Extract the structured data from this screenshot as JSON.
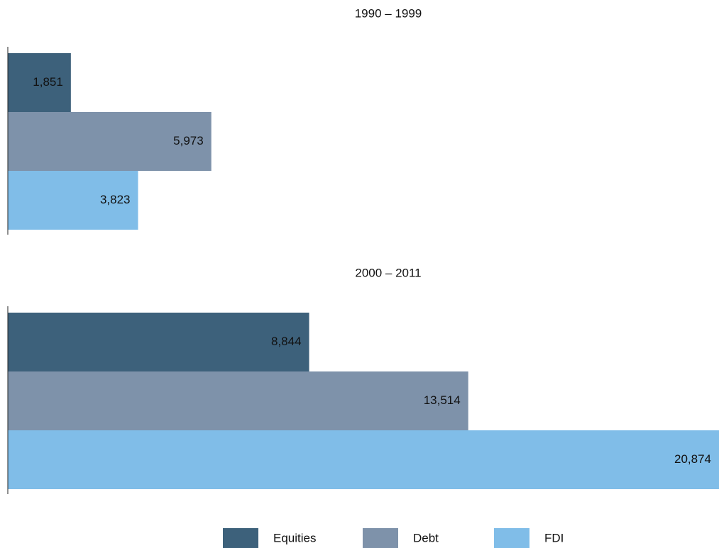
{
  "chart_data": [
    {
      "type": "bar",
      "orientation": "horizontal",
      "title": "1990 – 1999",
      "values": [
        1851,
        5973,
        3823
      ],
      "value_labels": [
        "1,851",
        "5,973",
        "3,823"
      ],
      "xlim": [
        0,
        20874
      ]
    },
    {
      "type": "bar",
      "orientation": "horizontal",
      "title": "2000 – 2011",
      "values": [
        8844,
        13514,
        20874
      ],
      "value_labels": [
        "8,844",
        "13,514",
        "20,874"
      ],
      "xlim": [
        0,
        20874
      ]
    }
  ],
  "legend": {
    "position": "bottom",
    "items": [
      {
        "name": "Equities",
        "color": "#3d617b"
      },
      {
        "name": "Debt",
        "color": "#7e92aa"
      },
      {
        "name": "FDI",
        "color": "#80bde8"
      }
    ]
  }
}
